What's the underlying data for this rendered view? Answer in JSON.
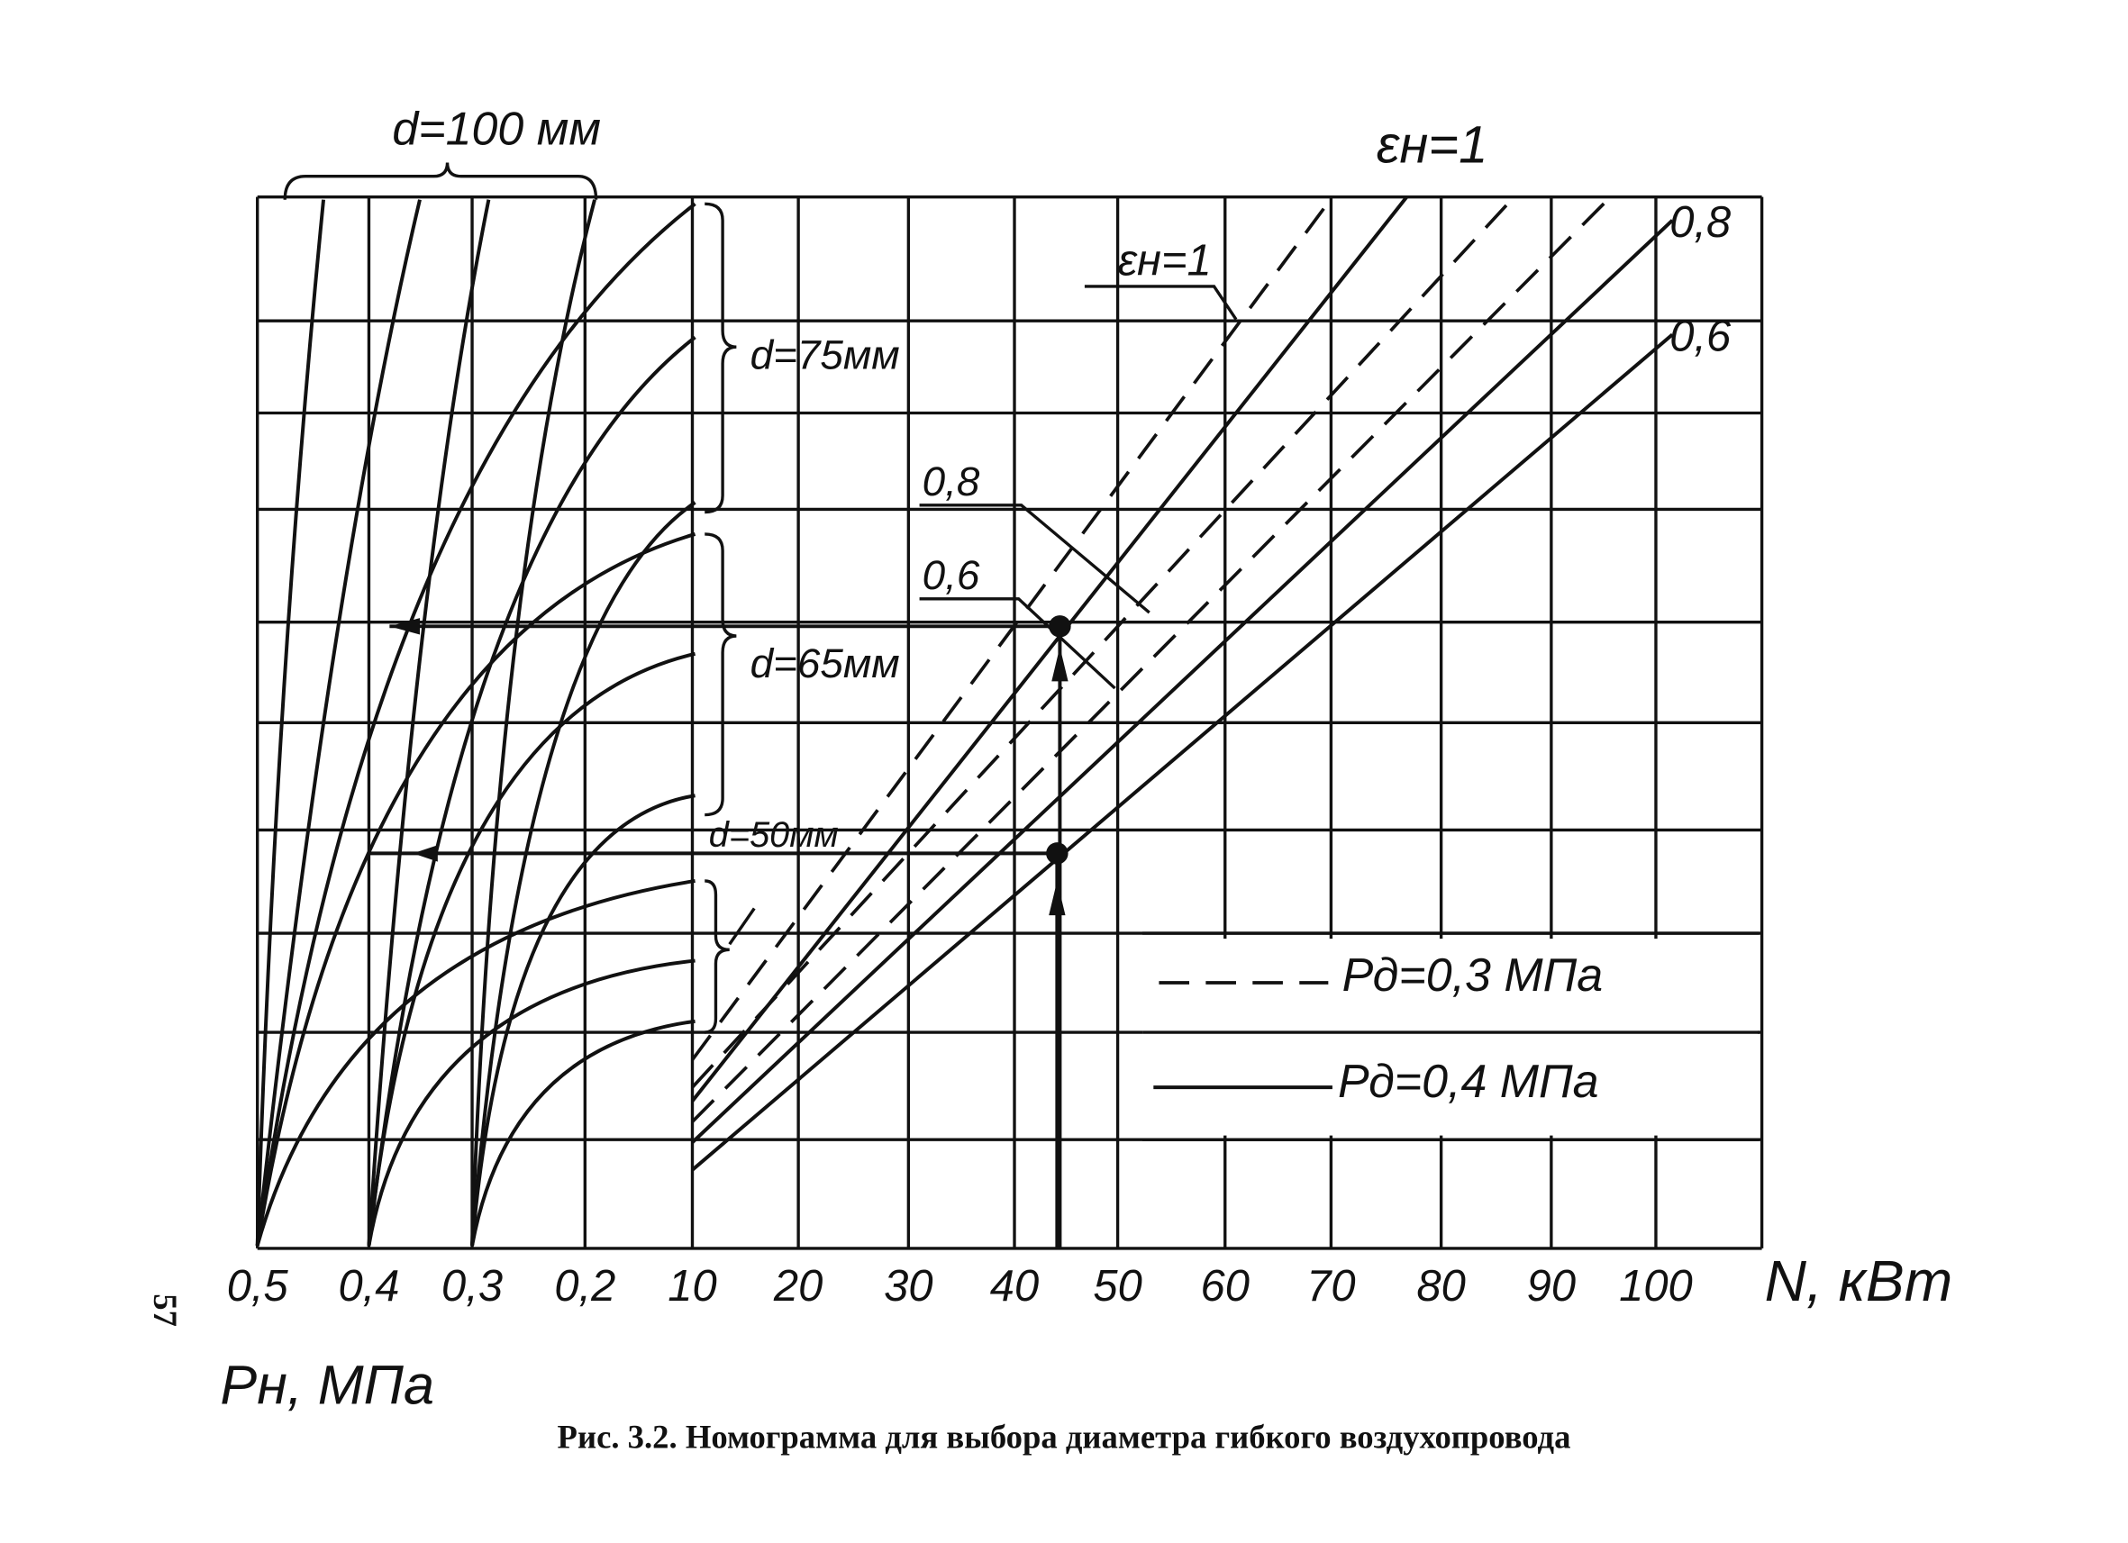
{
  "labels": {
    "d100": "d=100 мм",
    "d75": "d=75мм",
    "d65": "d=65мм",
    "d50": "d=50мм",
    "eps_top": "εн=1",
    "eps_mid": "εн=1",
    "r08": "0,8",
    "r06": "0,6",
    "l08": "0,8",
    "l06": "0,6"
  },
  "axes": {
    "pressure_ticks": [
      "0,5",
      "0,4",
      "0,3",
      "0,2"
    ],
    "power_ticks": [
      "10",
      "20",
      "30",
      "40",
      "50",
      "60",
      "70",
      "80",
      "90",
      "100"
    ],
    "power_title": "N, кВт",
    "pressure_title": "Рн, МПа"
  },
  "legend": {
    "dashed": "Рд=0,3 МПа",
    "solid": "Рд=0,4 МПа"
  },
  "page_number": "57",
  "caption": "Рис. 3.2. Номограмма для выбора диаметра гибкого воздухопровода"
}
